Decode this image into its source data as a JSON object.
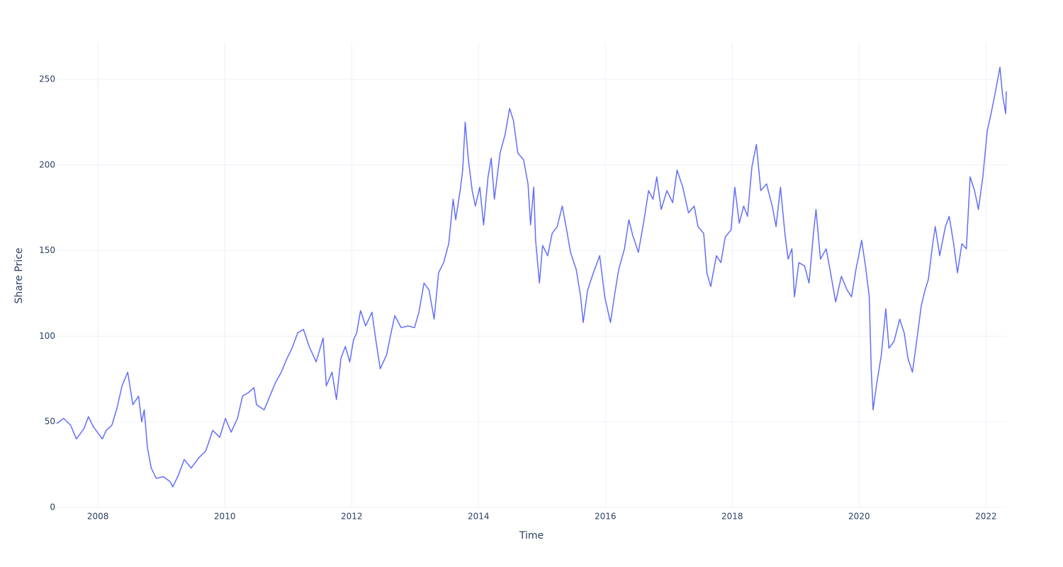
{
  "chart_data": {
    "type": "line",
    "xlabel": "Time",
    "ylabel": "Share Price",
    "xlim": [
      2007.35,
      2022.32
    ],
    "ylim": [
      0,
      271.5
    ],
    "xticks": [
      2008,
      2010,
      2012,
      2014,
      2016,
      2018,
      2020,
      2022
    ],
    "yticks": [
      0,
      50,
      100,
      150,
      200,
      250
    ],
    "grid": true,
    "color": "#636efa",
    "x": [
      2007.35,
      2007.46,
      2007.57,
      2007.66,
      2007.78,
      2007.85,
      2007.93,
      2008.07,
      2008.13,
      2008.22,
      2008.3,
      2008.38,
      2008.47,
      2008.55,
      2008.64,
      2008.69,
      2008.73,
      2008.78,
      2008.84,
      2008.92,
      2009.03,
      2009.14,
      2009.18,
      2009.27,
      2009.36,
      2009.47,
      2009.59,
      2009.7,
      2009.81,
      2009.92,
      2010.01,
      2010.1,
      2010.2,
      2010.28,
      2010.37,
      2010.46,
      2010.5,
      2010.62,
      2010.71,
      2010.8,
      2010.89,
      2010.98,
      2011.06,
      2011.15,
      2011.24,
      2011.33,
      2011.44,
      2011.55,
      2011.6,
      2011.69,
      2011.76,
      2011.83,
      2011.9,
      2011.97,
      2012.03,
      2012.08,
      2012.14,
      2012.22,
      2012.32,
      2012.38,
      2012.45,
      2012.55,
      2012.61,
      2012.68,
      2012.78,
      2012.89,
      2012.99,
      2013.06,
      2013.14,
      2013.22,
      2013.3,
      2013.37,
      2013.45,
      2013.53,
      2013.6,
      2013.64,
      2013.71,
      2013.75,
      2013.79,
      2013.84,
      2013.9,
      2013.95,
      2014.02,
      2014.08,
      2014.15,
      2014.2,
      2014.25,
      2014.34,
      2014.42,
      2014.49,
      2014.55,
      2014.62,
      2014.71,
      2014.78,
      2014.82,
      2014.87,
      2014.9,
      2014.96,
      2015.01,
      2015.09,
      2015.16,
      2015.24,
      2015.32,
      2015.38,
      2015.45,
      2015.54,
      2015.61,
      2015.65,
      2015.72,
      2015.81,
      2015.91,
      2015.99,
      2016.08,
      2016.14,
      2016.21,
      2016.3,
      2016.37,
      2016.43,
      2016.52,
      2016.61,
      2016.68,
      2016.75,
      2016.81,
      2016.88,
      2016.97,
      2017.06,
      2017.13,
      2017.22,
      2017.31,
      2017.4,
      2017.46,
      2017.55,
      2017.6,
      2017.66,
      2017.75,
      2017.82,
      2017.89,
      2017.98,
      2018.04,
      2018.11,
      2018.18,
      2018.24,
      2018.31,
      2018.38,
      2018.45,
      2018.54,
      2018.63,
      2018.69,
      2018.76,
      2018.83,
      2018.88,
      2018.94,
      2018.98,
      2019.05,
      2019.14,
      2019.21,
      2019.28,
      2019.32,
      2019.39,
      2019.48,
      2019.54,
      2019.63,
      2019.72,
      2019.81,
      2019.88,
      2019.95,
      2020.04,
      2020.1,
      2020.16,
      2020.19,
      2020.22,
      2020.28,
      2020.35,
      2020.42,
      2020.47,
      2020.55,
      2020.64,
      2020.71,
      2020.77,
      2020.84,
      2020.91,
      2020.98,
      2021.04,
      2021.09,
      2021.16,
      2021.2,
      2021.27,
      2021.36,
      2021.42,
      2021.49,
      2021.55,
      2021.62,
      2021.69,
      2021.75,
      2021.82,
      2021.88,
      2021.95,
      2022.02,
      2022.08,
      2022.15,
      2022.22,
      2022.26,
      2022.31,
      2022.32
    ],
    "values": [
      49,
      52,
      48,
      40,
      46,
      53,
      47,
      40,
      45,
      48,
      58,
      71,
      79,
      60,
      65,
      50,
      57,
      35,
      23,
      17,
      18,
      15,
      12,
      19,
      28,
      23,
      29,
      33,
      45,
      41,
      52,
      44,
      52,
      65,
      67,
      70,
      60,
      57,
      65,
      73,
      79,
      87,
      93,
      102,
      104,
      94,
      85,
      99,
      71,
      79,
      63,
      87,
      94,
      85,
      98,
      102,
      115,
      106,
      114,
      98,
      81,
      89,
      100,
      112,
      105,
      106,
      105,
      114,
      131,
      127,
      110,
      137,
      143,
      154,
      180,
      168,
      185,
      197,
      225,
      203,
      185,
      176,
      187,
      165,
      193,
      204,
      180,
      207,
      218,
      233,
      226,
      207,
      203,
      189,
      165,
      187,
      156,
      131,
      153,
      147,
      160,
      164,
      176,
      164,
      149,
      139,
      123,
      108,
      127,
      137,
      147,
      123,
      108,
      123,
      139,
      151,
      168,
      159,
      149,
      168,
      185,
      180,
      193,
      174,
      185,
      178,
      197,
      187,
      172,
      176,
      164,
      160,
      137,
      129,
      147,
      143,
      158,
      162,
      187,
      166,
      176,
      170,
      199,
      212,
      185,
      189,
      176,
      164,
      187,
      160,
      145,
      151,
      123,
      143,
      141,
      131,
      160,
      174,
      145,
      151,
      139,
      120,
      135,
      127,
      123,
      139,
      156,
      141,
      123,
      81,
      57,
      73,
      89,
      116,
      93,
      97,
      110,
      102,
      87,
      79,
      98,
      118,
      127,
      133,
      154,
      164,
      147,
      164,
      170,
      154,
      137,
      154,
      151,
      193,
      185,
      174,
      193,
      220,
      230,
      243,
      257,
      241,
      230,
      243
    ]
  }
}
